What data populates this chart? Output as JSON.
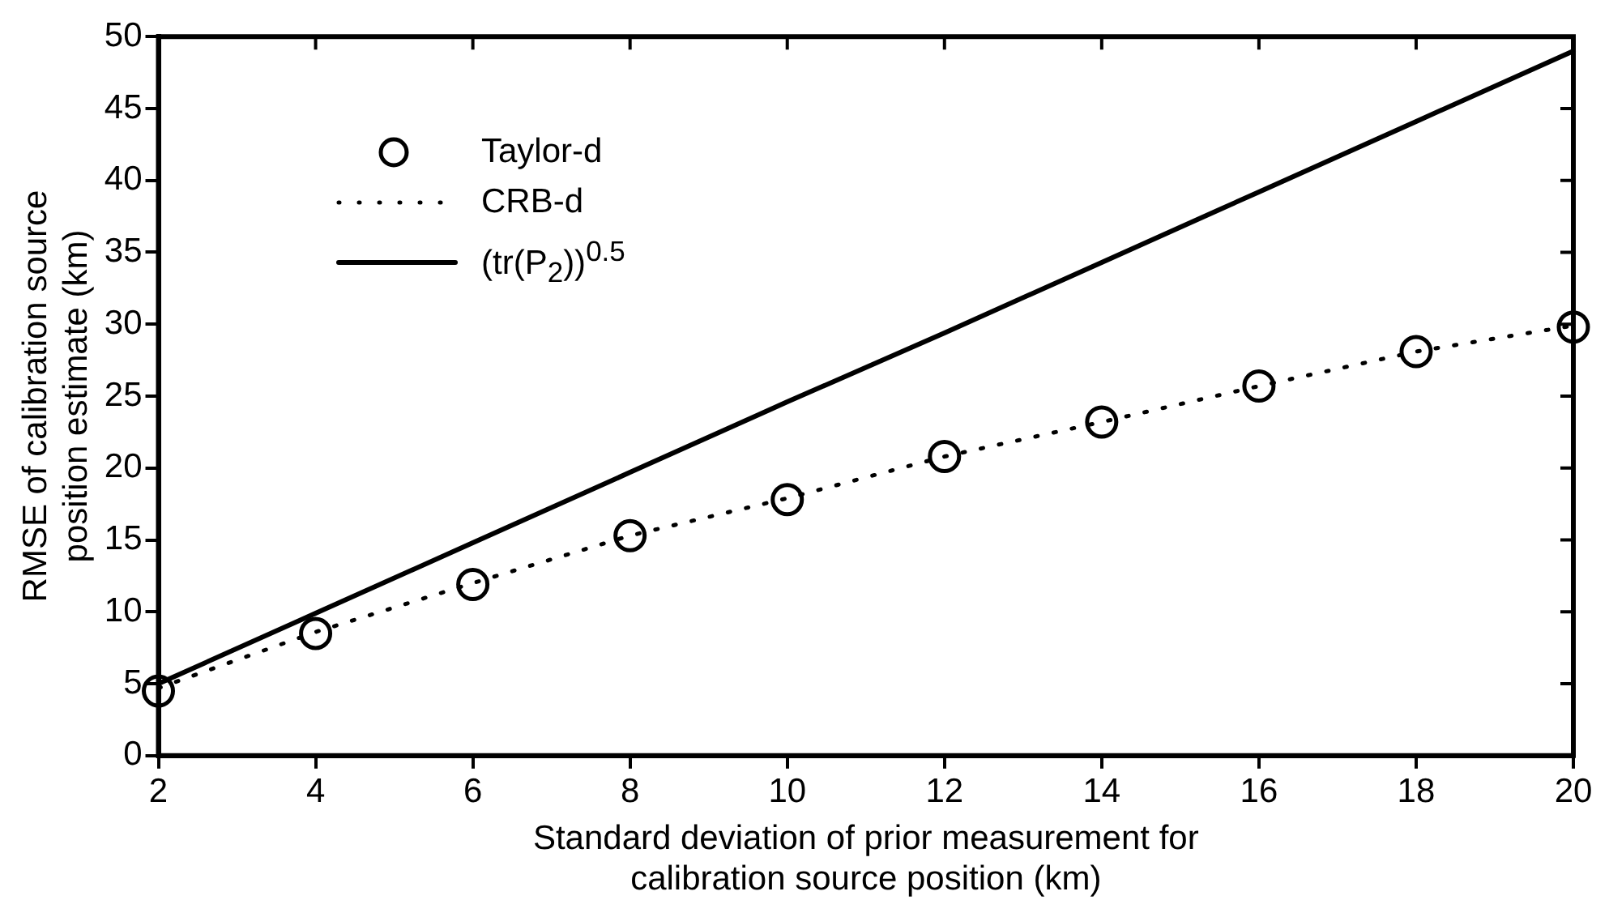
{
  "chart_data": {
    "type": "line",
    "xlabel": "Standard deviation of prior measurement for\ncalibration source position (km)",
    "ylabel": "RMSE of calibration source\nposition estimate (km)",
    "x": [
      2,
      4,
      6,
      8,
      10,
      12,
      14,
      16,
      18,
      20
    ],
    "series": [
      {
        "name": "Taylor-d",
        "type": "scatter",
        "color": "#000000",
        "marker": "circle",
        "values": [
          4.5,
          8.5,
          11.9,
          15.3,
          17.8,
          20.8,
          23.2,
          25.7,
          28.1,
          29.8
        ]
      },
      {
        "name": "CRB-d",
        "color": "#000000",
        "line_style": "dotted",
        "marker": "none",
        "values": [
          4.7,
          8.6,
          12.0,
          15.3,
          17.9,
          20.8,
          23.2,
          25.7,
          28.1,
          29.9
        ]
      },
      {
        "name": "(tr(P$_{2}$))$^{0.5}$",
        "color": "#000000",
        "line_style": "solid",
        "marker": "none",
        "values": [
          5.0,
          9.9,
          14.8,
          19.7,
          24.6,
          29.4,
          34.3,
          39.2,
          44.1,
          49.0
        ]
      }
    ],
    "xlim": [
      2,
      20
    ],
    "xticks": [
      2,
      4,
      6,
      8,
      10,
      12,
      14,
      16,
      18,
      20
    ],
    "ylim": [
      0,
      50
    ],
    "yticks": [
      0,
      5,
      10,
      15,
      20,
      25,
      30,
      35,
      40,
      45,
      50
    ],
    "grid": false,
    "legend": "top left"
  }
}
